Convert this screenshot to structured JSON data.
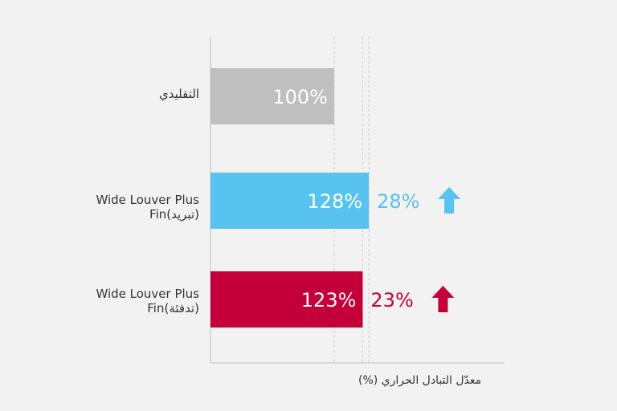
{
  "chart_data": {
    "type": "bar",
    "orientation": "horizontal",
    "categories": [
      {
        "lines": [
          "التقليدي"
        ]
      },
      {
        "lines": [
          "Wide Louver Plus",
          "Fin(تبريد)"
        ]
      },
      {
        "lines": [
          "Wide Louver Plus",
          "Fin(تدفئة)"
        ]
      }
    ],
    "values": [
      100,
      128,
      123
    ],
    "value_labels": [
      "100%",
      "128%",
      "123%"
    ],
    "increase_labels": [
      "",
      "28%",
      "23%"
    ],
    "colors": [
      "#bfbfbf",
      "#58c3ee",
      "#c4003a"
    ],
    "increase_colors": [
      "",
      "#58c3ee",
      "#c4003a"
    ],
    "xlabel": "(%) معدّل التبادل الحراري",
    "xlim": [
      0,
      140
    ],
    "reference_lines": [
      100,
      123,
      128
    ]
  }
}
